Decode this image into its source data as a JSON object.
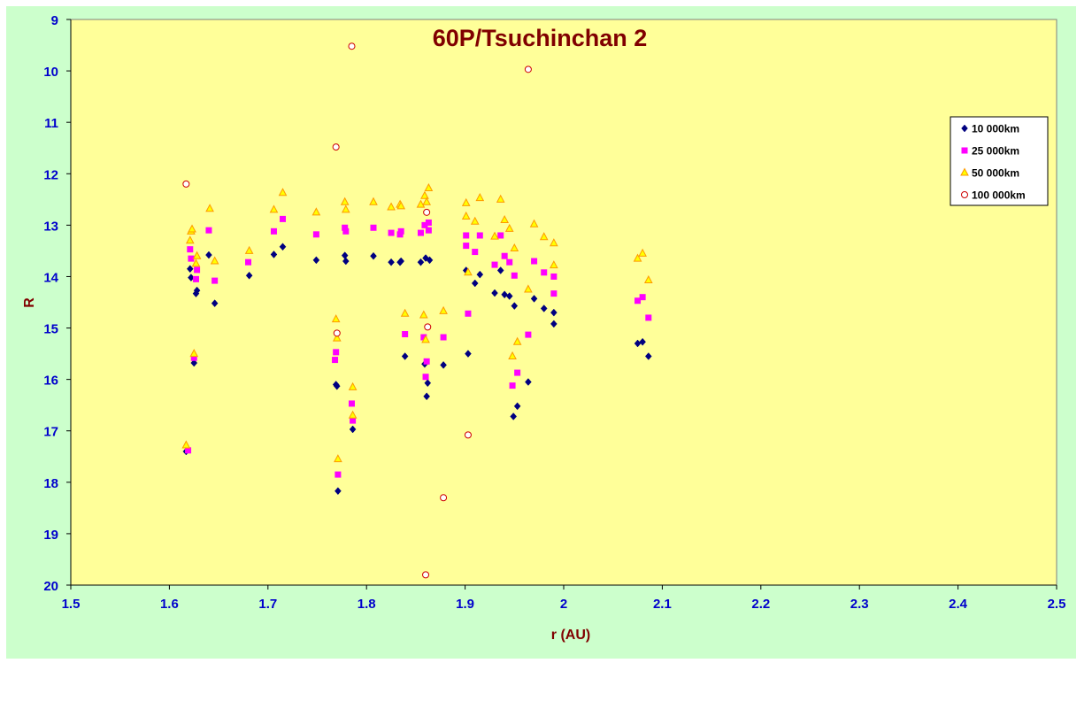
{
  "chart_data": {
    "type": "scatter",
    "title": "60P/Tsuchinchan 2",
    "xlabel": "r (AU)",
    "ylabel": "R",
    "xlim": [
      1.5,
      2.5
    ],
    "ylim": [
      9,
      20
    ],
    "y_inverted": true,
    "xticks": [
      "1.5",
      "1.6",
      "1.7",
      "1.8",
      "1.9",
      "2",
      "2.1",
      "2.2",
      "2.3",
      "2.4",
      "2.5"
    ],
    "yticks": [
      "9",
      "10",
      "11",
      "12",
      "13",
      "14",
      "15",
      "16",
      "17",
      "18",
      "19",
      "20"
    ],
    "grid": false,
    "legend_position": "right",
    "plot_background": "#ffff99",
    "chart_background": "#ccffcc",
    "series": [
      {
        "name": "10 000km",
        "marker": "diamond",
        "color": "#000080",
        "points": [
          [
            1.617,
            17.4
          ],
          [
            1.621,
            13.85
          ],
          [
            1.622,
            14.02
          ],
          [
            1.625,
            15.68
          ],
          [
            1.627,
            14.33
          ],
          [
            1.628,
            14.27
          ],
          [
            1.64,
            13.58
          ],
          [
            1.646,
            14.52
          ],
          [
            1.681,
            13.98
          ],
          [
            1.706,
            13.57
          ],
          [
            1.715,
            13.42
          ],
          [
            1.749,
            13.68
          ],
          [
            1.769,
            16.1
          ],
          [
            1.77,
            16.13
          ],
          [
            1.771,
            18.17
          ],
          [
            1.778,
            13.59
          ],
          [
            1.779,
            13.7
          ],
          [
            1.786,
            16.97
          ],
          [
            1.807,
            13.6
          ],
          [
            1.825,
            13.72
          ],
          [
            1.834,
            13.72
          ],
          [
            1.835,
            13.7
          ],
          [
            1.839,
            15.55
          ],
          [
            1.855,
            13.72
          ],
          [
            1.859,
            15.7
          ],
          [
            1.86,
            13.64
          ],
          [
            1.861,
            16.33
          ],
          [
            1.862,
            16.07
          ],
          [
            1.864,
            13.68
          ],
          [
            1.878,
            15.72
          ],
          [
            1.901,
            13.88
          ],
          [
            1.903,
            15.5
          ],
          [
            1.91,
            14.13
          ],
          [
            1.915,
            13.96
          ],
          [
            1.93,
            14.32
          ],
          [
            1.936,
            13.88
          ],
          [
            1.94,
            14.35
          ],
          [
            1.945,
            14.38
          ],
          [
            1.949,
            16.72
          ],
          [
            1.95,
            14.57
          ],
          [
            1.953,
            16.52
          ],
          [
            1.964,
            16.05
          ],
          [
            1.97,
            14.43
          ],
          [
            1.98,
            14.62
          ],
          [
            1.99,
            14.7
          ],
          [
            1.99,
            14.92
          ],
          [
            2.075,
            15.3
          ],
          [
            2.08,
            15.27
          ],
          [
            2.086,
            15.55
          ]
        ]
      },
      {
        "name": "25 000km",
        "marker": "square",
        "color": "#ff00ff",
        "points": [
          [
            1.619,
            17.38
          ],
          [
            1.621,
            13.47
          ],
          [
            1.622,
            13.65
          ],
          [
            1.625,
            15.58
          ],
          [
            1.627,
            14.05
          ],
          [
            1.628,
            13.87
          ],
          [
            1.64,
            13.1
          ],
          [
            1.646,
            14.08
          ],
          [
            1.68,
            13.72
          ],
          [
            1.706,
            13.12
          ],
          [
            1.715,
            12.88
          ],
          [
            1.749,
            13.18
          ],
          [
            1.768,
            15.62
          ],
          [
            1.769,
            15.47
          ],
          [
            1.771,
            17.85
          ],
          [
            1.778,
            13.05
          ],
          [
            1.779,
            13.12
          ],
          [
            1.785,
            16.47
          ],
          [
            1.786,
            16.8
          ],
          [
            1.807,
            13.05
          ],
          [
            1.825,
            13.15
          ],
          [
            1.834,
            13.18
          ],
          [
            1.835,
            13.12
          ],
          [
            1.839,
            15.12
          ],
          [
            1.855,
            13.15
          ],
          [
            1.858,
            15.18
          ],
          [
            1.859,
            13.0
          ],
          [
            1.86,
            15.95
          ],
          [
            1.861,
            15.65
          ],
          [
            1.863,
            13.1
          ],
          [
            1.863,
            12.95
          ],
          [
            1.878,
            15.18
          ],
          [
            1.901,
            13.2
          ],
          [
            1.901,
            13.4
          ],
          [
            1.903,
            14.72
          ],
          [
            1.91,
            13.52
          ],
          [
            1.915,
            13.2
          ],
          [
            1.93,
            13.77
          ],
          [
            1.936,
            13.2
          ],
          [
            1.94,
            13.6
          ],
          [
            1.945,
            13.72
          ],
          [
            1.948,
            16.12
          ],
          [
            1.95,
            13.98
          ],
          [
            1.953,
            15.87
          ],
          [
            1.964,
            15.13
          ],
          [
            1.97,
            13.7
          ],
          [
            1.98,
            13.92
          ],
          [
            1.99,
            14.0
          ],
          [
            1.99,
            14.33
          ],
          [
            2.075,
            14.47
          ],
          [
            2.08,
            14.4
          ],
          [
            2.086,
            14.8
          ]
        ]
      },
      {
        "name": "50 000km",
        "marker": "triangle",
        "color": "#ff9900",
        "points": [
          [
            1.617,
            17.28
          ],
          [
            1.621,
            13.3
          ],
          [
            1.622,
            13.12
          ],
          [
            1.623,
            13.08
          ],
          [
            1.625,
            15.5
          ],
          [
            1.627,
            13.75
          ],
          [
            1.628,
            13.6
          ],
          [
            1.641,
            12.68
          ],
          [
            1.646,
            13.7
          ],
          [
            1.681,
            13.5
          ],
          [
            1.706,
            12.7
          ],
          [
            1.715,
            12.37
          ],
          [
            1.749,
            12.75
          ],
          [
            1.769,
            14.83
          ],
          [
            1.77,
            15.2
          ],
          [
            1.771,
            17.55
          ],
          [
            1.778,
            12.55
          ],
          [
            1.779,
            12.7
          ],
          [
            1.786,
            16.15
          ],
          [
            1.786,
            16.7
          ],
          [
            1.807,
            12.55
          ],
          [
            1.825,
            12.65
          ],
          [
            1.834,
            12.6
          ],
          [
            1.835,
            12.63
          ],
          [
            1.839,
            14.72
          ],
          [
            1.855,
            12.6
          ],
          [
            1.858,
            14.75
          ],
          [
            1.859,
            12.43
          ],
          [
            1.86,
            15.23
          ],
          [
            1.861,
            12.55
          ],
          [
            1.863,
            12.28
          ],
          [
            1.878,
            14.67
          ],
          [
            1.901,
            12.57
          ],
          [
            1.901,
            12.83
          ],
          [
            1.903,
            13.92
          ],
          [
            1.91,
            12.93
          ],
          [
            1.915,
            12.47
          ],
          [
            1.93,
            13.22
          ],
          [
            1.936,
            12.5
          ],
          [
            1.94,
            12.9
          ],
          [
            1.945,
            13.07
          ],
          [
            1.948,
            15.55
          ],
          [
            1.95,
            13.45
          ],
          [
            1.953,
            15.27
          ],
          [
            1.964,
            14.25
          ],
          [
            1.97,
            12.98
          ],
          [
            1.98,
            13.23
          ],
          [
            1.99,
            13.35
          ],
          [
            1.99,
            13.78
          ],
          [
            2.075,
            13.65
          ],
          [
            2.08,
            13.55
          ],
          [
            2.086,
            14.07
          ]
        ]
      },
      {
        "name": "100 000km",
        "marker": "circle",
        "color": "#cc0000",
        "points": [
          [
            1.617,
            12.2
          ],
          [
            1.769,
            11.48
          ],
          [
            1.77,
            15.1
          ],
          [
            1.785,
            9.52
          ],
          [
            1.86,
            19.8
          ],
          [
            1.861,
            12.75
          ],
          [
            1.862,
            14.98
          ],
          [
            1.878,
            18.3
          ],
          [
            1.903,
            17.08
          ],
          [
            1.964,
            9.97
          ]
        ]
      }
    ]
  }
}
